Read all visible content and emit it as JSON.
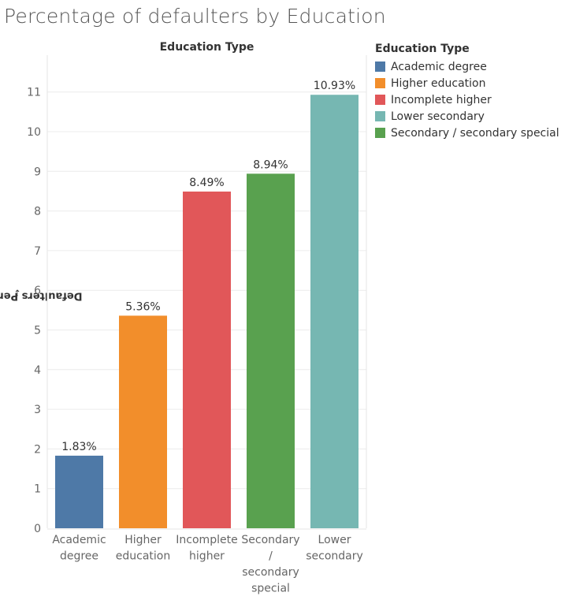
{
  "title": "Percentage of defaulters by Education",
  "colors": {
    "Academic degree": "#4e79a7",
    "Higher education": "#f28e2b",
    "Incomplete higher": "#e15759",
    "Lower secondary": "#76b7b2",
    "Secondary / secondary special": "#59a14f"
  },
  "legend": {
    "title": "Education Type",
    "items": [
      "Academic degree",
      "Higher education",
      "Incomplete higher",
      "Lower secondary",
      "Secondary / secondary special"
    ]
  },
  "chart_data": {
    "type": "bar",
    "title": "Percentage of defaulters by Education",
    "column_header": "Education Type",
    "xlabel": "",
    "ylabel": "Defaulters Percentage",
    "categories": [
      "Academic degree",
      "Higher education",
      "Incomplete higher",
      "Secondary / secondary special",
      "Lower secondary"
    ],
    "category_label_lines": [
      [
        "Academic",
        "degree"
      ],
      [
        "Higher",
        "education"
      ],
      [
        "Incomplete",
        "higher"
      ],
      [
        "Secondary",
        "/",
        "secondary",
        "special"
      ],
      [
        "Lower",
        "secondary"
      ]
    ],
    "values": [
      1.83,
      5.36,
      8.49,
      8.94,
      10.93
    ],
    "data_labels": [
      "1.83%",
      "5.36%",
      "8.49%",
      "8.94%",
      "10.93%"
    ],
    "yticks": [
      0,
      1,
      2,
      3,
      4,
      5,
      6,
      7,
      8,
      9,
      10,
      11
    ],
    "ylim": [
      0,
      11
    ],
    "grid": true,
    "legend_position": "right"
  }
}
